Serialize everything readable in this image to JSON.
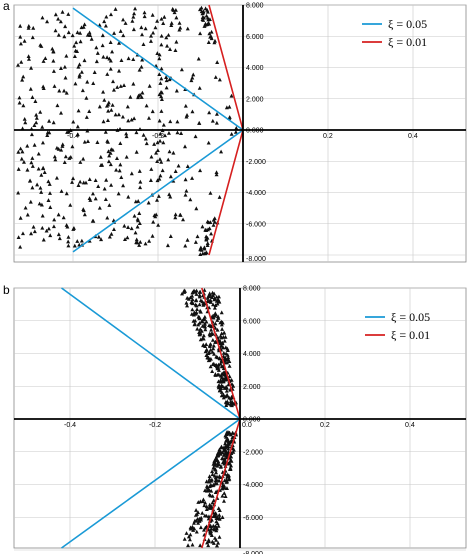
{
  "panels": [
    {
      "label": "a",
      "x_ticks": [
        "0.2",
        "0.4"
      ],
      "x_ticks_neg": [
        "-0.4",
        "-0.2"
      ],
      "y_ticks": [
        "8.000",
        "6.000",
        "4.000",
        "2.000",
        "0.000",
        "-2.000",
        "-4.000",
        "-6.000",
        "-8.000"
      ],
      "legend": [
        "ξ = 0.05",
        "ξ = 0.01"
      ]
    },
    {
      "label": "b",
      "x_ticks": [
        "0.0",
        "0.2",
        "0.4"
      ],
      "x_ticks_neg": [
        "-0.4",
        "-0.2"
      ],
      "y_ticks": [
        "8.000",
        "6.000",
        "4.000",
        "2.000",
        "0.000",
        "-2.000",
        "-4.000",
        "-6.000",
        "-8.000"
      ],
      "legend": [
        "ξ = 0.05",
        "ξ = 0.01"
      ]
    }
  ],
  "chart_data": [
    {
      "type": "scatter",
      "xlim": [
        -0.55,
        0.55
      ],
      "ylim": [
        -8,
        8
      ],
      "grid": true,
      "legend_position": "top-right",
      "series": [
        {
          "name": "ξ = 0.05",
          "kind": "line",
          "color": "#1a9ad6",
          "x": [
            -0.4,
            0.0,
            -0.4
          ],
          "y": [
            7.8,
            0.0,
            -7.8
          ]
        },
        {
          "name": "ξ = 0.01",
          "kind": "line",
          "color": "#d62020",
          "x": [
            -0.08,
            0.0,
            -0.08
          ],
          "y": [
            8.0,
            0.0,
            -8.0
          ]
        }
      ],
      "scatter_regions": [
        {
          "x": [
            -0.53,
            -0.01
          ],
          "y": [
            -7.5,
            7.8
          ],
          "count": 520,
          "shape": "triangle"
        },
        {
          "x": [
            -0.09,
            -0.07
          ],
          "y": [
            5.5,
            8.0
          ],
          "count": 30,
          "shape": "triangle"
        },
        {
          "x": [
            -0.09,
            -0.07
          ],
          "y": [
            -8.0,
            -5.5
          ],
          "count": 30,
          "shape": "triangle"
        }
      ]
    },
    {
      "type": "scatter",
      "xlim": [
        -0.55,
        0.55
      ],
      "ylim": [
        -8,
        8
      ],
      "grid": true,
      "legend_position": "top-right",
      "series": [
        {
          "name": "ξ = 0.05",
          "kind": "line",
          "color": "#1a9ad6",
          "x": [
            -0.42,
            0.0,
            -0.42
          ],
          "y": [
            8.0,
            0.0,
            -8.0
          ]
        },
        {
          "name": "ξ = 0.01",
          "kind": "line",
          "color": "#d62020",
          "x": [
            -0.09,
            0.0,
            -0.09
          ],
          "y": [
            8.0,
            0.0,
            -8.0
          ]
        }
      ],
      "scatter_regions": [
        {
          "x": [
            -0.14,
            -0.01
          ],
          "y": [
            -8.0,
            8.0
          ],
          "count": 700,
          "shape": "triangle"
        }
      ]
    }
  ]
}
